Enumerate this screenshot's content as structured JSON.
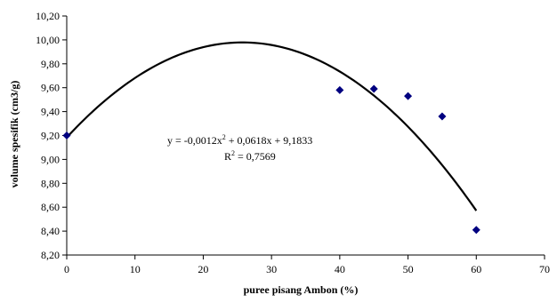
{
  "chart_data": {
    "type": "scatter",
    "title": "",
    "xlabel": "puree pisang Ambon (%)",
    "ylabel": "volume spesifik (cm3/g)",
    "xlim": [
      0,
      70
    ],
    "ylim": [
      8.2,
      10.2
    ],
    "x_ticks": [
      "0",
      "10",
      "20",
      "30",
      "40",
      "50",
      "60",
      "70"
    ],
    "y_ticks": [
      "8,20",
      "8,40",
      "8,60",
      "8,80",
      "9,00",
      "9,20",
      "9,40",
      "9,60",
      "9,80",
      "10,00",
      "10,20"
    ],
    "grid": false,
    "series": [
      {
        "marker": "diamond",
        "color": "#000080",
        "points": [
          {
            "x": 0,
            "y": 9.2
          },
          {
            "x": 40,
            "y": 9.58
          },
          {
            "x": 45,
            "y": 9.59
          },
          {
            "x": 50,
            "y": 9.53
          },
          {
            "x": 55,
            "y": 9.36
          },
          {
            "x": 60,
            "y": 8.41
          }
        ]
      }
    ],
    "trendline": {
      "type": "polynomial",
      "order": 2,
      "color": "#000000",
      "coefficients": [
        -0.0012,
        0.0618,
        9.1833
      ],
      "x_range": [
        0,
        60
      ],
      "equation_prefix": "y = -0,0012x",
      "equation_exp": "2",
      "equation_suffix": " + 0,0618x + 9,1833",
      "r2_prefix": "R",
      "r2_exp": "2",
      "r2_suffix": " = 0,7569"
    }
  }
}
